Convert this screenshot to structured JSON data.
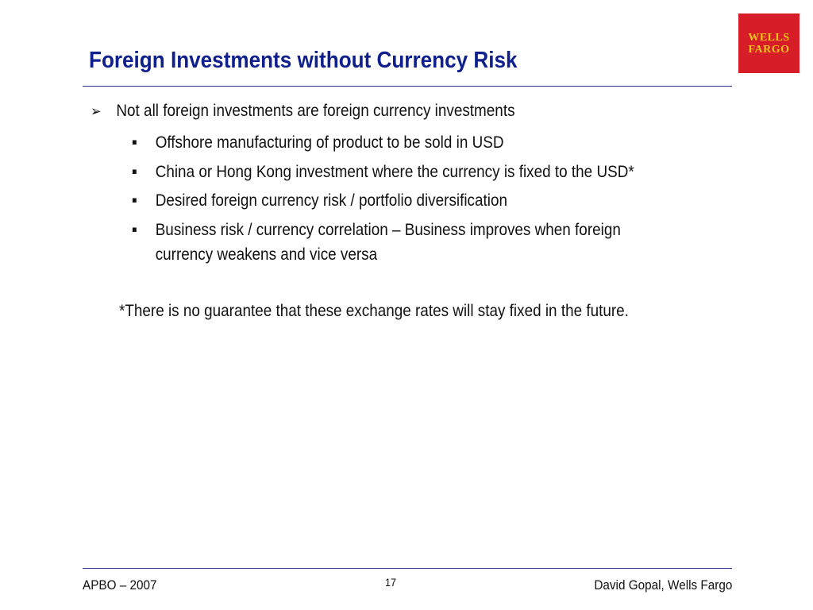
{
  "slide": {
    "title": "Foreign Investments without Currency Risk",
    "logo": {
      "line1": "WELLS",
      "line2": "FARGO",
      "background_color": "#d71e28",
      "text_color": "#f2c319"
    },
    "bullets": [
      {
        "marker": "➢",
        "text": "Not all foreign investments are foreign currency investments",
        "sub_bullets": [
          {
            "marker": "▪",
            "text": "Offshore manufacturing of product to be sold in USD"
          },
          {
            "marker": "▪",
            "text": "China or Hong Kong investment where the currency is fixed to the USD*"
          },
          {
            "marker": "▪",
            "text": "Desired foreign currency risk / portfolio diversification"
          },
          {
            "marker": "▪",
            "text": "Business risk / currency correlation – Business improves when foreign",
            "continuation": "currency weakens and vice versa"
          }
        ]
      }
    ],
    "footnote": "*There is no guarantee that these exchange rates will stay fixed in the future.",
    "footer": {
      "left": "APBO – 2007",
      "page_number": "17",
      "right": "David Gopal, Wells Fargo"
    },
    "colors": {
      "title": "#0f1f8c",
      "rule": "#2a2f8a"
    }
  }
}
